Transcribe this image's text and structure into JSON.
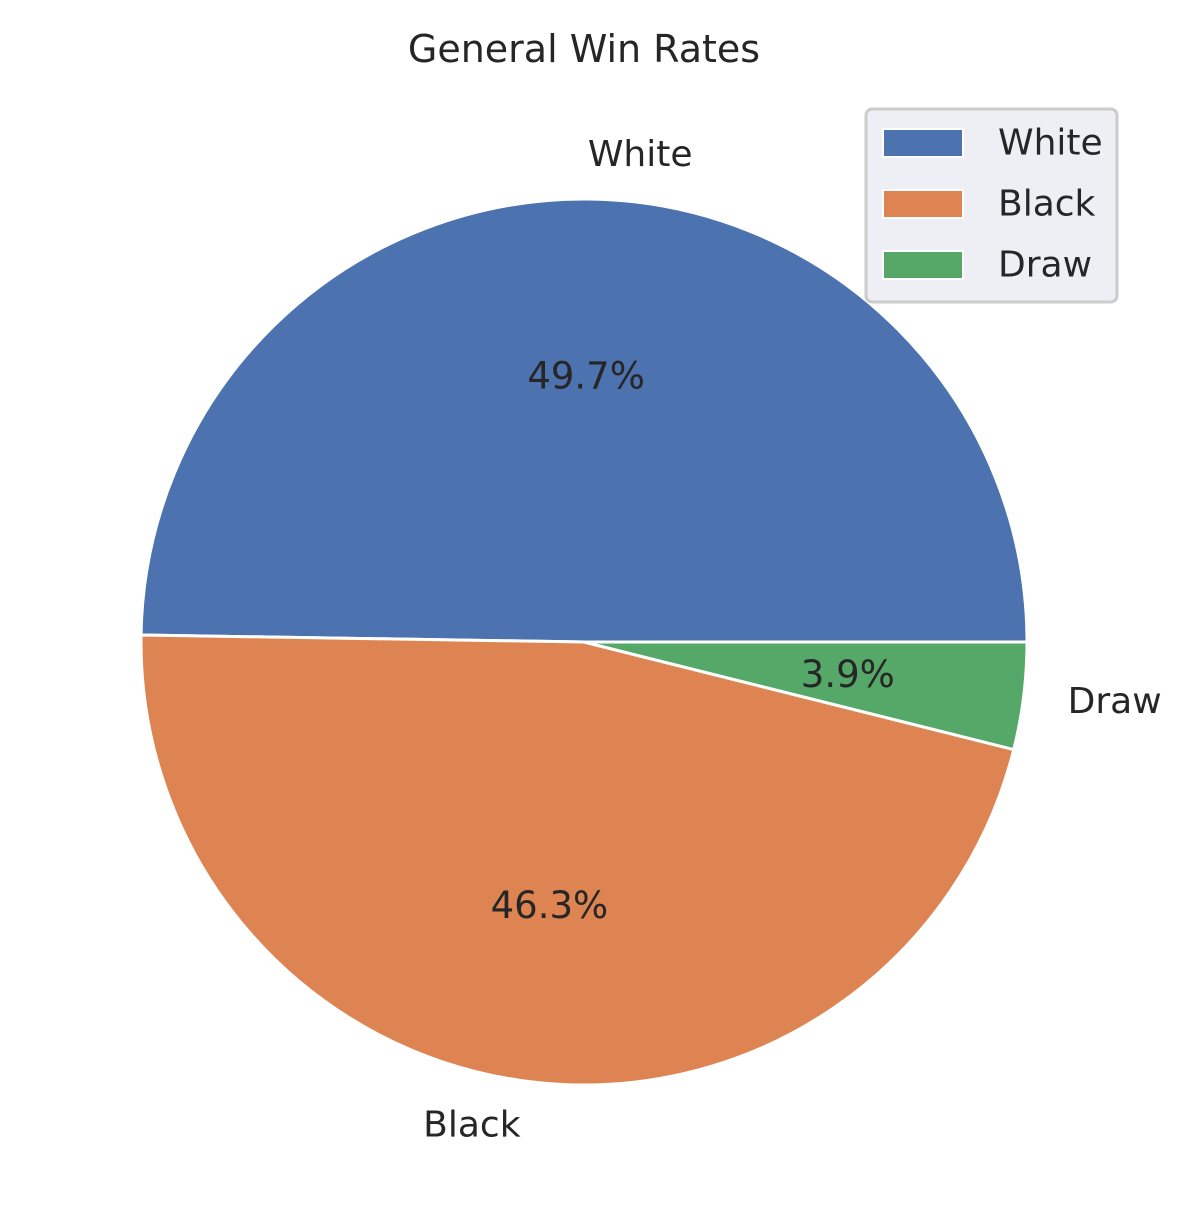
{
  "chart_data": {
    "type": "pie",
    "title": "General Win Rates",
    "categories": [
      "White",
      "Black",
      "Draw"
    ],
    "values": [
      49.7,
      46.3,
      3.9
    ],
    "percent_labels": [
      "49.7%",
      "46.3%",
      "3.9%"
    ],
    "colors": [
      "#4c72b0",
      "#dd8452",
      "#55a868"
    ],
    "start_angle_deg": 0,
    "direction": "counterclockwise",
    "legend": {
      "placement": "top-right",
      "entries": [
        "White",
        "Black",
        "Draw"
      ]
    }
  }
}
